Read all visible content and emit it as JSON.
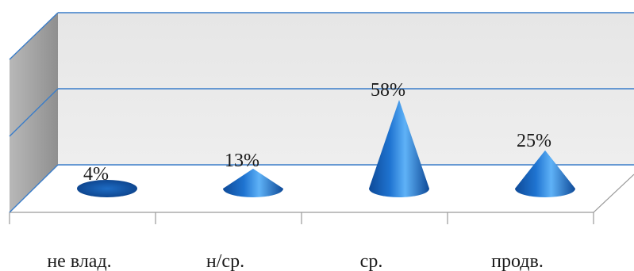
{
  "chart_data": {
    "type": "bar",
    "bar_shape": "cone",
    "three_d": true,
    "categories": [
      "не влад.",
      "н/ср.",
      "ср.",
      "продв."
    ],
    "values": [
      4,
      13,
      58,
      25
    ],
    "data_labels": [
      "4%",
      "13%",
      "58%",
      "25%"
    ],
    "ylim": [
      0,
      100
    ],
    "grid": true,
    "legend": "none",
    "colors": {
      "cone_light": "#4da6f5",
      "cone_mid": "#1c6fc9",
      "cone_dark": "#0b3f86",
      "gridline": "#3a7dc9",
      "back_wall": "#e8e8e8",
      "side_wall": "#a9a9a9"
    }
  }
}
